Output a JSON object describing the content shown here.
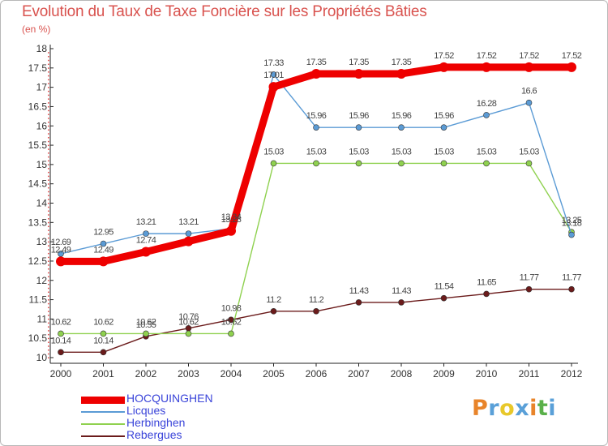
{
  "title": "Evolution du Taux de Taxe Foncière sur les Propriétés Bâties",
  "unit_label": "(en %)",
  "logo": {
    "text": "Proxiti",
    "colors": [
      "#e8842a",
      "#5aa0d8",
      "#e8c82a",
      "#5aa0d8",
      "#e8842a",
      "#5ab04a",
      "#5aa0d8"
    ]
  },
  "chart_data": {
    "type": "line",
    "title": "Evolution du Taux de Taxe Foncière sur les Propriétés Bâties",
    "ylabel": "(en %)",
    "x": [
      "2000",
      "2001",
      "2002",
      "2003",
      "2004",
      "2005",
      "2006",
      "2007",
      "2008",
      "2009",
      "2010",
      "2011",
      "2012"
    ],
    "ylim": [
      10,
      18
    ],
    "yticks": [
      "10",
      "10.5",
      "11",
      "11.5",
      "12",
      "12.5",
      "13",
      "13.5",
      "14",
      "14.5",
      "15",
      "15.5",
      "16",
      "16.5",
      "17",
      "17.5",
      "18"
    ],
    "grid": false,
    "legend_position": "bottom-left",
    "series": [
      {
        "name": "HOCQUINGHEN",
        "color": "#ee0000",
        "values": [
          12.49,
          12.49,
          12.74,
          13.01,
          13.28,
          17.01,
          17.35,
          17.35,
          17.35,
          17.52,
          17.52,
          17.52,
          17.52
        ],
        "labels": [
          "12.49",
          "12.49",
          "12.74",
          "",
          "13.28",
          "17.01",
          "17.35",
          "17.35",
          "17.35",
          "17.52",
          "17.52",
          "17.52",
          "17.52"
        ]
      },
      {
        "name": "Licques",
        "color": "#5b9bd5",
        "values": [
          12.69,
          12.95,
          13.21,
          13.21,
          13.34,
          17.33,
          15.96,
          15.96,
          15.96,
          15.96,
          16.28,
          16.6,
          13.18
        ],
        "labels": [
          "12.69",
          "12.95",
          "13.21",
          "13.21",
          "13.34",
          "17.33",
          "15.96",
          "15.96",
          "15.96",
          "15.96",
          "16.28",
          "16.6",
          "13.18"
        ]
      },
      {
        "name": "Herbinghen",
        "color": "#8fd14f",
        "values": [
          10.62,
          10.62,
          10.62,
          10.62,
          10.62,
          15.03,
          15.03,
          15.03,
          15.03,
          15.03,
          15.03,
          15.03,
          13.25
        ],
        "labels": [
          "10.62",
          "10.62",
          "10.62",
          "10.62",
          "10.62",
          "15.03",
          "15.03",
          "15.03",
          "15.03",
          "15.03",
          "15.03",
          "15.03",
          "13.25"
        ]
      },
      {
        "name": "Rebergues",
        "color": "#6b1b1b",
        "values": [
          10.14,
          10.14,
          10.55,
          10.76,
          10.98,
          11.2,
          11.2,
          11.43,
          11.43,
          11.54,
          11.65,
          11.77,
          11.77
        ],
        "labels": [
          "10.14",
          "10.14",
          "10.55",
          "10.76",
          "10.98",
          "11.2",
          "11.2",
          "11.43",
          "11.43",
          "11.54",
          "11.65",
          "11.77",
          "11.77"
        ]
      }
    ]
  }
}
